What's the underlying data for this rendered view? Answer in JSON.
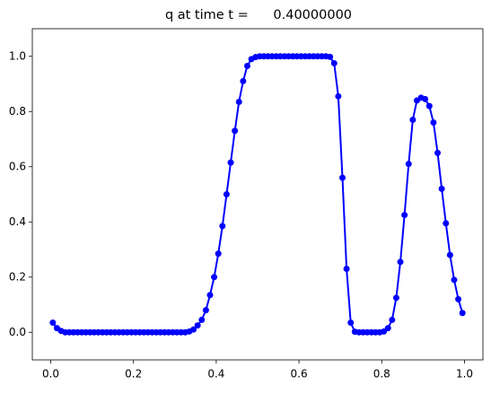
{
  "chart_data": {
    "type": "line",
    "title": "q at time t =      0.40000000",
    "x": [
      0.005,
      0.015,
      0.025,
      0.035,
      0.045,
      0.055,
      0.065,
      0.075,
      0.085,
      0.095,
      0.105,
      0.115,
      0.125,
      0.135,
      0.145,
      0.155,
      0.165,
      0.175,
      0.185,
      0.195,
      0.205,
      0.215,
      0.225,
      0.235,
      0.245,
      0.255,
      0.265,
      0.275,
      0.285,
      0.295,
      0.305,
      0.315,
      0.325,
      0.335,
      0.345,
      0.355,
      0.365,
      0.375,
      0.385,
      0.395,
      0.405,
      0.415,
      0.425,
      0.435,
      0.445,
      0.455,
      0.465,
      0.475,
      0.485,
      0.495,
      0.505,
      0.515,
      0.525,
      0.535,
      0.545,
      0.555,
      0.565,
      0.575,
      0.585,
      0.595,
      0.605,
      0.615,
      0.625,
      0.635,
      0.645,
      0.655,
      0.665,
      0.675,
      0.685,
      0.695,
      0.705,
      0.715,
      0.725,
      0.735,
      0.745,
      0.755,
      0.765,
      0.775,
      0.785,
      0.795,
      0.805,
      0.815,
      0.825,
      0.835,
      0.845,
      0.855,
      0.865,
      0.875,
      0.885,
      0.895,
      0.905,
      0.915,
      0.925,
      0.935,
      0.945,
      0.955,
      0.965,
      0.975,
      0.985,
      0.995
    ],
    "series": [
      {
        "name": "q",
        "color": "#0000ff",
        "values": [
          0.035,
          0.015,
          0.005,
          0,
          0,
          0,
          0,
          0,
          0,
          0,
          0,
          0,
          0,
          0,
          0,
          0,
          0,
          0,
          0,
          0,
          0,
          0,
          0,
          0,
          0,
          0,
          0,
          0,
          0,
          0,
          0,
          0,
          0,
          0.003,
          0.01,
          0.025,
          0.045,
          0.08,
          0.135,
          0.2,
          0.285,
          0.385,
          0.5,
          0.615,
          0.73,
          0.835,
          0.91,
          0.965,
          0.99,
          0.997,
          1,
          1,
          1,
          1,
          1,
          1,
          1,
          1,
          1,
          1,
          1,
          1,
          1,
          1,
          1,
          1,
          1,
          0.998,
          0.975,
          0.855,
          0.56,
          0.23,
          0.035,
          0.002,
          0,
          0,
          0,
          0,
          0,
          0,
          0.003,
          0.015,
          0.045,
          0.125,
          0.255,
          0.425,
          0.61,
          0.77,
          0.84,
          0.85,
          0.845,
          0.82,
          0.76,
          0.65,
          0.52,
          0.395,
          0.28,
          0.19,
          0.12,
          0.07
        ]
      }
    ],
    "xlim": [
      -0.0445,
      1.0445
    ],
    "xticks": [
      {
        "value": 0,
        "label": "0.0"
      },
      0.2,
      0.4,
      0.6,
      0.8,
      {
        "value": 1,
        "label": "1.0"
      }
    ],
    "ylim": [
      -0.1,
      1.1
    ],
    "yticks": [
      {
        "value": 0,
        "label": "0.0"
      },
      0.2,
      0.4,
      0.6,
      0.8,
      {
        "value": 1,
        "label": "1.0"
      }
    ]
  }
}
